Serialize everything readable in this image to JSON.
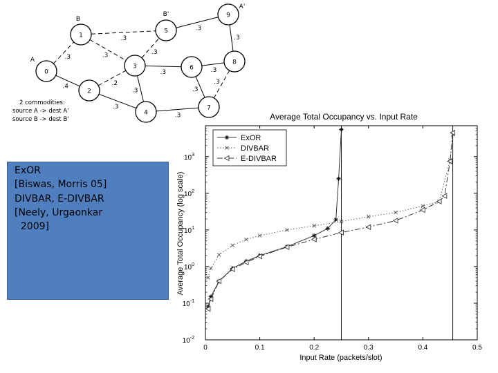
{
  "network": {
    "nodes": [
      {
        "id": "0",
        "label": "0",
        "letter": "A"
      },
      {
        "id": "1",
        "label": "1",
        "letter": "B"
      },
      {
        "id": "2",
        "label": "2",
        "letter": ""
      },
      {
        "id": "3",
        "label": "3",
        "letter": ""
      },
      {
        "id": "4",
        "label": "4",
        "letter": ""
      },
      {
        "id": "5",
        "label": "5",
        "letter": "B'"
      },
      {
        "id": "6",
        "label": "6",
        "letter": ""
      },
      {
        "id": "7",
        "label": "7",
        "letter": ""
      },
      {
        "id": "8",
        "label": "8",
        "letter": ""
      },
      {
        "id": "9",
        "label": "9",
        "letter": "A'"
      }
    ],
    "edges": [
      {
        "from": "0",
        "to": "1",
        "weight": ".3",
        "dashed": true
      },
      {
        "from": "0",
        "to": "2",
        "weight": ".4",
        "dashed": false
      },
      {
        "from": "1",
        "to": "5",
        "weight": ".3",
        "dashed": true
      },
      {
        "from": "1",
        "to": "3",
        "weight": ".3",
        "dashed": true
      },
      {
        "from": "2",
        "to": "3",
        "weight": ".2",
        "dashed": true
      },
      {
        "from": "2",
        "to": "4",
        "weight": ".3",
        "dashed": false
      },
      {
        "from": "3",
        "to": "5",
        "weight": ".3",
        "dashed": true
      },
      {
        "from": "3",
        "to": "6",
        "weight": ".3",
        "dashed": false
      },
      {
        "from": "3",
        "to": "4",
        "weight": ".3",
        "dashed": false
      },
      {
        "from": "5",
        "to": "9",
        "weight": ".3",
        "dashed": false
      },
      {
        "from": "6",
        "to": "8",
        "weight": ".3",
        "dashed": false
      },
      {
        "from": "6",
        "to": "7",
        "weight": ".3",
        "dashed": false
      },
      {
        "from": "8",
        "to": "9",
        "weight": ".3",
        "dashed": false
      },
      {
        "from": "8",
        "to": "7",
        "weight": ".3",
        "dashed": true
      },
      {
        "from": "4",
        "to": "7",
        "weight": ".3",
        "dashed": false
      }
    ],
    "commodities": [
      "2 commodities:",
      "source A -> dest A'",
      "source B -> dest B'"
    ]
  },
  "citations": [
    "ExOR",
    "[Biswas, Morris 05]",
    "",
    "DIVBAR, E-DIVBAR",
    "[Neely, Urgaonkar",
    "  2009]"
  ],
  "colors": {
    "box": "#4f7fbf",
    "line": "#000000",
    "dotted": "#555555"
  },
  "chart_data": {
    "type": "line",
    "title": "Average Total Occupancy vs. Input Rate",
    "xlabel": "Input Rate (packets/slot)",
    "ylabel": "Average Total Occupancy (log scale)",
    "xlim": [
      0,
      0.5
    ],
    "ylim": [
      0.01,
      7000
    ],
    "yscale": "log",
    "xticks": [
      "0",
      "0.1",
      "0.2",
      "0.3",
      "0.4",
      "0.5"
    ],
    "yticks": [
      "10-2",
      "10-1",
      "100",
      "101",
      "102",
      "103"
    ],
    "grid": false,
    "legend": "top-left",
    "vlines": [
      0.25,
      0.455
    ],
    "series": [
      {
        "name": "ExOR",
        "marker": "asterisk",
        "style": "solid",
        "x": [
          0.005,
          0.01,
          0.025,
          0.05,
          0.075,
          0.1,
          0.15,
          0.2,
          0.225,
          0.24,
          0.245,
          0.25
        ],
        "y": [
          0.08,
          0.15,
          0.4,
          0.9,
          1.4,
          2.0,
          3.5,
          7.0,
          11,
          19,
          250,
          5500
        ]
      },
      {
        "name": "DIVBAR",
        "marker": "x",
        "style": "dotted",
        "x": [
          0.005,
          0.01,
          0.025,
          0.05,
          0.075,
          0.1,
          0.15,
          0.2,
          0.25,
          0.3,
          0.35,
          0.4,
          0.43,
          0.45,
          0.455
        ],
        "y": [
          0.5,
          0.9,
          2.1,
          3.8,
          5.5,
          7.0,
          10,
          13,
          17,
          23,
          30,
          45,
          60,
          800,
          4000
        ]
      },
      {
        "name": "E-DIVBAR",
        "marker": "triangle-left",
        "style": "dashdot",
        "x": [
          0.005,
          0.01,
          0.025,
          0.05,
          0.075,
          0.1,
          0.15,
          0.2,
          0.25,
          0.3,
          0.35,
          0.4,
          0.43,
          0.44,
          0.45,
          0.455
        ],
        "y": [
          0.07,
          0.13,
          0.4,
          0.85,
          1.3,
          1.9,
          3.4,
          5.5,
          8.5,
          12,
          18,
          35,
          60,
          85,
          750,
          4500
        ]
      }
    ]
  }
}
